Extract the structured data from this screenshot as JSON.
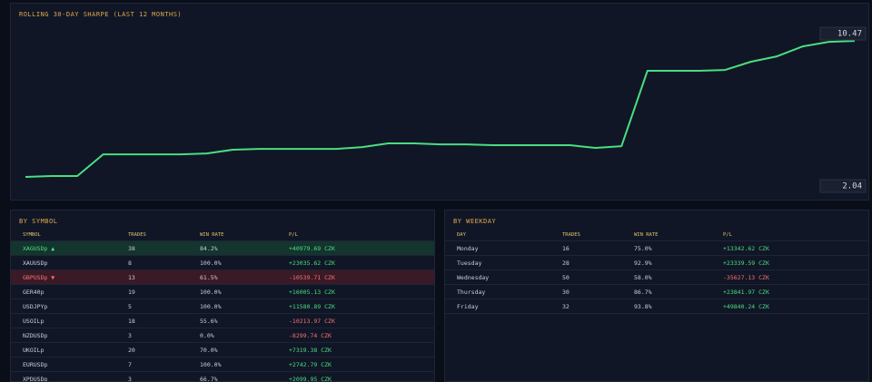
{
  "chart_data": {
    "type": "line",
    "title": "ROLLING 30-DAY SHARPE (LAST 12 MONTHS)",
    "color": "#4ade80",
    "values": [
      2.04,
      2.1,
      2.1,
      3.44,
      3.44,
      3.44,
      3.44,
      3.5,
      3.73,
      3.78,
      3.78,
      3.78,
      3.78,
      3.89,
      4.12,
      4.12,
      4.06,
      4.06,
      4.01,
      4.01,
      4.01,
      4.01,
      3.84,
      3.95,
      8.62,
      8.62,
      8.62,
      8.67,
      9.18,
      9.51,
      10.13,
      10.41,
      10.47
    ],
    "ylim": [
      1.03,
      11.71
    ],
    "yticks": [
      2.04,
      10.47
    ]
  },
  "by_symbol": {
    "title": "BY SYMBOL",
    "columns": [
      "SYMBOL",
      "TRADES",
      "WIN RATE",
      "P/L"
    ],
    "rows": [
      [
        "XAGUSDp ▲",
        "38",
        "84.2%",
        "+40979.69 CZK"
      ],
      [
        "XAUUSDp",
        "8",
        "100.0%",
        "+23035.62 CZK"
      ],
      [
        "GBPUSDp ▼",
        "13",
        "61.5%",
        "-10539.71 CZK"
      ],
      [
        "GER40p",
        "19",
        "100.0%",
        "+16005.13 CZK"
      ],
      [
        "USDJPYp",
        "5",
        "100.0%",
        "+11580.89 CZK"
      ],
      [
        "USOILp",
        "18",
        "55.6%",
        "-10213.97 CZK"
      ],
      [
        "NZDUSDp",
        "3",
        "0.0%",
        "-8299.74 CZK"
      ],
      [
        "UKOILp",
        "20",
        "70.0%",
        "+7319.38 CZK"
      ],
      [
        "EURUSDp",
        "7",
        "100.0%",
        "+2742.79 CZK"
      ],
      [
        "XPDUSDp",
        "3",
        "66.7%",
        "+2099.95 CZK"
      ]
    ]
  },
  "by_weekday": {
    "title": "BY WEEKDAY",
    "columns": [
      "DAY",
      "TRADES",
      "WIN RATE",
      "P/L"
    ],
    "rows": [
      [
        "Monday",
        "16",
        "75.0%",
        "+13342.62 CZK"
      ],
      [
        "Tuesday",
        "28",
        "92.9%",
        "+23339.59 CZK"
      ],
      [
        "Wednesday",
        "50",
        "58.0%",
        "-35627.13 CZK"
      ],
      [
        "Thursday",
        "30",
        "86.7%",
        "+23841.97 CZK"
      ],
      [
        "Friday",
        "32",
        "93.8%",
        "+49840.24 CZK"
      ]
    ]
  }
}
